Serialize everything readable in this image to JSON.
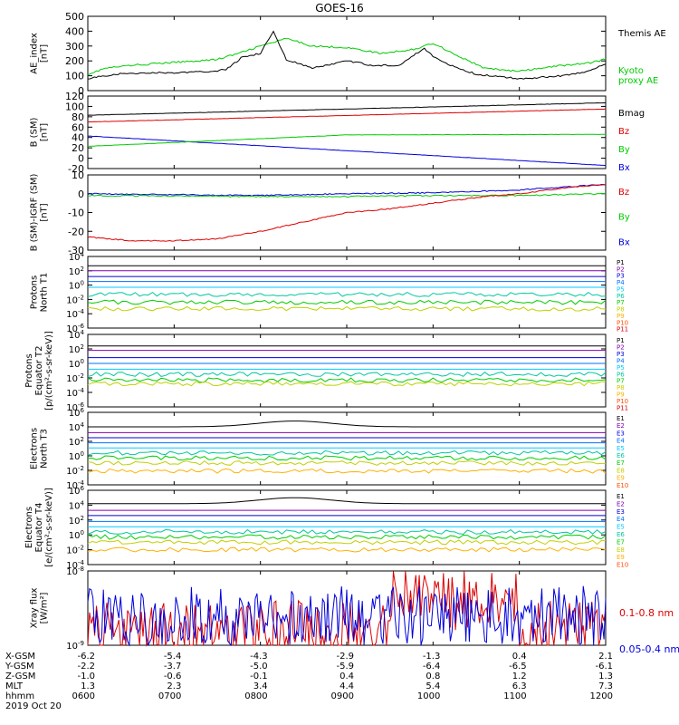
{
  "title": "GOES-16",
  "x_ticks": [
    "0600",
    "0700",
    "0800",
    "0900",
    "1000",
    "1100",
    "1200"
  ],
  "date_label": "2019 Oct 20",
  "orbit": [
    {
      "label": "X-GSM",
      "values": [
        "-6.2",
        "-5.4",
        "-4.3",
        "-2.9",
        "-1.3",
        "0.4",
        "2.1"
      ]
    },
    {
      "label": "Y-GSM",
      "values": [
        "-2.2",
        "-3.7",
        "-5.0",
        "-5.9",
        "-6.4",
        "-6.5",
        "-6.1"
      ]
    },
    {
      "label": "Z-GSM",
      "values": [
        "-1.0",
        "-0.6",
        "-0.1",
        "0.4",
        "0.8",
        "1.2",
        "1.3"
      ]
    },
    {
      "label": "MLT",
      "values": [
        "1.3",
        "2.3",
        "3.4",
        "4.4",
        "5.4",
        "6.3",
        "7.3"
      ]
    },
    {
      "label": "hhmm",
      "values": [
        "0600",
        "0700",
        "0800",
        "0900",
        "1000",
        "1100",
        "1200"
      ]
    }
  ],
  "colors": {
    "black": "#000000",
    "blue": "#0000dd",
    "green": "#00cc00",
    "red": "#dd0000",
    "p_palette": [
      "#000000",
      "#8000b0",
      "#0000dd",
      "#0070ff",
      "#00c8ff",
      "#00c8a0",
      "#00cc00",
      "#c0d000",
      "#ffb000",
      "#ff5000",
      "#dd0000"
    ]
  },
  "chart_data": [
    {
      "type": "line",
      "ylabel": "AE_index\n[nT]",
      "ylim": [
        0,
        500
      ],
      "ytick_labels": [
        "0",
        "100",
        "200",
        "300",
        "400",
        "500"
      ],
      "series": [
        {
          "name": "Kyoto\nproxy AE",
          "color": "#00cc00",
          "x": [
            6.0,
            6.2,
            6.5,
            7.0,
            7.5,
            7.8,
            8.0,
            8.3,
            8.6,
            9.0,
            9.4,
            9.8,
            10.0,
            10.3,
            10.6,
            11.0,
            11.5,
            11.8,
            12.0
          ],
          "values": [
            110,
            150,
            170,
            190,
            210,
            260,
            300,
            350,
            300,
            290,
            250,
            280,
            320,
            230,
            150,
            130,
            170,
            185,
            210
          ]
        },
        {
          "name": "Themis AE",
          "color": "#000000",
          "x": [
            6.0,
            6.3,
            6.7,
            7.0,
            7.3,
            7.6,
            7.8,
            8.0,
            8.15,
            8.3,
            8.6,
            9.0,
            9.3,
            9.6,
            9.8,
            9.9,
            10.0,
            10.2,
            10.5,
            11.0,
            11.5,
            11.8,
            12.0
          ],
          "values": [
            80,
            110,
            120,
            120,
            125,
            140,
            230,
            250,
            400,
            210,
            150,
            200,
            170,
            170,
            250,
            280,
            230,
            170,
            110,
            80,
            100,
            130,
            180
          ]
        }
      ]
    },
    {
      "type": "line",
      "ylabel": "B (SM)\n[nT]",
      "ylim": [
        -20,
        120
      ],
      "ytick_labels": [
        "-20",
        "0",
        "20",
        "40",
        "60",
        "80",
        "100",
        "120"
      ],
      "series": [
        {
          "name": "Bx",
          "color": "#0000dd",
          "x": [
            6.0,
            12.0
          ],
          "values": [
            43,
            -14
          ]
        },
        {
          "name": "By",
          "color": "#00cc00",
          "x": [
            6.0,
            9.0,
            12.0
          ],
          "values": [
            23,
            45,
            46
          ]
        },
        {
          "name": "Bz",
          "color": "#dd0000",
          "x": [
            6.0,
            12.0
          ],
          "values": [
            70,
            95
          ]
        },
        {
          "name": "Bmag",
          "color": "#000000",
          "x": [
            6.0,
            12.0
          ],
          "values": [
            83,
            107
          ]
        }
      ]
    },
    {
      "type": "line",
      "ylabel": "B (SM)-IGRF (SM)\n[nT]",
      "ylim": [
        -30,
        10
      ],
      "ytick_labels": [
        "-30",
        "-20",
        "-10",
        "0",
        "10"
      ],
      "series": [
        {
          "name": "Bx",
          "color": "#0000dd",
          "x": [
            6.0,
            8.0,
            9.0,
            10.0,
            11.0,
            12.0
          ],
          "values": [
            0,
            -1,
            0,
            0.5,
            2,
            5
          ]
        },
        {
          "name": "By",
          "color": "#00cc00",
          "x": [
            6.0,
            8.0,
            9.0,
            10.0,
            11.0,
            12.0
          ],
          "values": [
            -1,
            -1.5,
            -1.5,
            -1,
            -1,
            0
          ]
        },
        {
          "name": "Bz",
          "color": "#dd0000",
          "x": [
            6.0,
            6.5,
            7.0,
            7.5,
            8.0,
            8.5,
            9.0,
            9.5,
            10.0,
            10.5,
            11.0,
            11.5,
            12.0
          ],
          "values": [
            -23,
            -25,
            -25,
            -24,
            -20,
            -15,
            -10,
            -8,
            -5,
            -2,
            0,
            3,
            5
          ]
        }
      ]
    },
    {
      "type": "line",
      "ylabel": "Protons\nNorth T1",
      "log": true,
      "ylim": [
        -6,
        4
      ],
      "ytick_labels": [
        "10-6",
        "10-4",
        "10-2",
        "100",
        "102",
        "104"
      ],
      "channels": [
        "P1",
        "P2",
        "P3",
        "P4",
        "P5",
        "P6",
        "P7",
        "P8",
        "P9",
        "P10",
        "P11"
      ],
      "levels_log10": [
        2.7,
        2.0,
        1.2,
        0.5,
        -0.3,
        -1.3,
        -2.4,
        -3.3,
        null,
        null,
        null
      ]
    },
    {
      "type": "line",
      "ylabel": "Protons\nEquator T2\n[p/(cm²-s-sr-keV)]",
      "log": true,
      "ylim": [
        -6,
        4
      ],
      "ytick_labels": [
        "10-6",
        "10-4",
        "10-2",
        "100",
        "102",
        "104"
      ],
      "channels": [
        "P1",
        "P2",
        "P3",
        "P4",
        "P5",
        "P6",
        "P7",
        "P8",
        "P9",
        "P10",
        "P11"
      ],
      "levels_log10": [
        2.4,
        1.8,
        0.8,
        0.0,
        -0.8,
        -1.5,
        -2.3,
        -2.8,
        null,
        null,
        null
      ]
    },
    {
      "type": "line",
      "ylabel": "Electrons\nNorth T3",
      "log": true,
      "ylim": [
        -4,
        6
      ],
      "ytick_labels": [
        "10-4",
        "10-2",
        "100",
        "102",
        "104",
        "106"
      ],
      "channels": [
        "E1",
        "E2",
        "E3",
        "E4",
        "E5",
        "E6",
        "E7",
        "E8",
        "E9",
        "E10"
      ],
      "levels_log10": [
        4.0,
        3.2,
        2.5,
        1.8,
        1.1,
        0.4,
        -0.3,
        -1.0,
        -2.1,
        null
      ]
    },
    {
      "type": "line",
      "ylabel": "Electrons\nEquator T4\n[e/(cm²-s-sr-keV)]",
      "log": true,
      "ylim": [
        -4,
        6
      ],
      "ytick_labels": [
        "10-4",
        "10-2",
        "100",
        "102",
        "104",
        "106"
      ],
      "channels": [
        "E1",
        "E2",
        "E3",
        "E4",
        "E5",
        "E6",
        "E7",
        "E8",
        "E9",
        "E10"
      ],
      "levels_log10": [
        4.2,
        3.3,
        2.6,
        1.8,
        1.1,
        0.4,
        -0.3,
        -1.0,
        -2.0,
        null
      ]
    },
    {
      "type": "line",
      "ylabel": "Xray flux\n[W/m²]",
      "log": true,
      "ylim": [
        -9,
        -8
      ],
      "ytick_labels": [
        "10-9",
        "10-8"
      ],
      "series": [
        {
          "name": "0.1-0.8 nm",
          "color": "#dd0000"
        },
        {
          "name": "0.05-0.4 nm",
          "color": "#0000dd"
        }
      ]
    }
  ]
}
